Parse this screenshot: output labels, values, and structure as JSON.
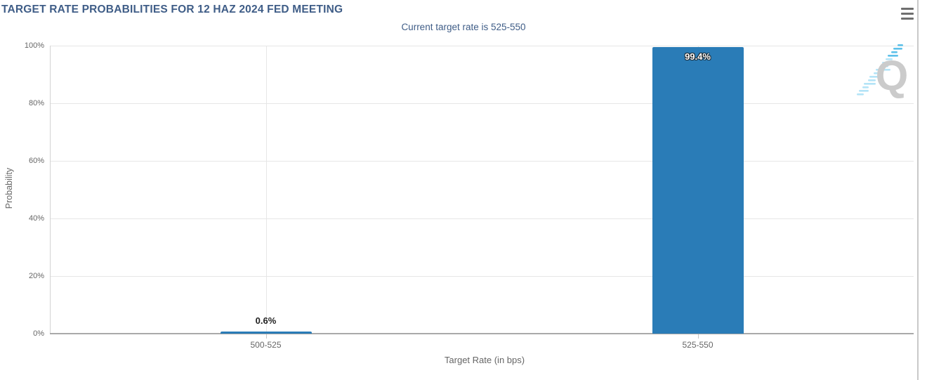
{
  "chart": {
    "watermark_letter": "Q",
    "menu_icon": "hamburger-menu-icon",
    "colors": {
      "bar": "#2a7cb7",
      "title_text": "#3f5d87",
      "axis_text": "#666666",
      "gridline": "#e6e6e6",
      "watermark_gray": "#cbcbcb",
      "watermark_blue": "#9fd9f2"
    }
  },
  "chart_data": {
    "type": "bar",
    "title": "TARGET RATE PROBABILITIES FOR 12 HAZ 2024 FED MEETING",
    "subtitle": "Current target rate is 525-550",
    "categories": [
      "500-525",
      "525-550"
    ],
    "values": [
      0.6,
      99.4
    ],
    "value_labels": [
      "0.6%",
      "99.4%"
    ],
    "xlabel": "Target Rate (in bps)",
    "ylabel": "Probability",
    "ylim": [
      0,
      100
    ],
    "yticks": [
      0,
      20,
      40,
      60,
      80,
      100
    ],
    "ytick_labels": [
      "0%",
      "20%",
      "40%",
      "60%",
      "80%",
      "100%"
    ],
    "grid": true,
    "legend": "none",
    "bar_color": "#2a7cb7"
  }
}
